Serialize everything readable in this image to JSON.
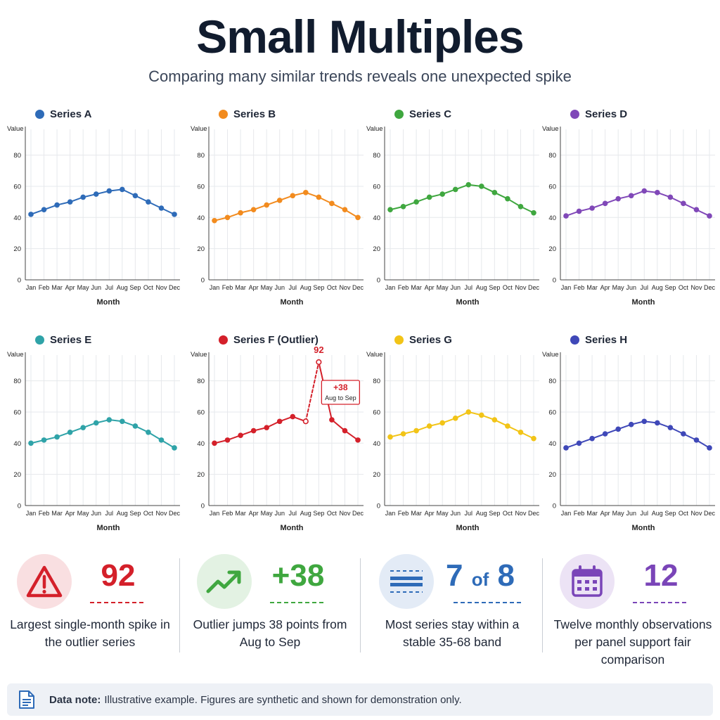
{
  "header": {
    "title": "Small Multiples",
    "subtitle": "Comparing many similar trends reveals one unexpected spike"
  },
  "chart_data": [
    {
      "type": "line",
      "name": "Series A",
      "color": "#2e6bb8",
      "xlabel": "Month",
      "ylabel": "Value",
      "ylim": [
        0,
        92
      ],
      "yticks": [
        0,
        20,
        40,
        60,
        80
      ],
      "categories": [
        "Jan",
        "Feb",
        "Mar",
        "Apr",
        "May",
        "Jun",
        "Jul",
        "Aug",
        "Sep",
        "Oct",
        "Nov",
        "Dec"
      ],
      "values": [
        42,
        45,
        48,
        50,
        53,
        55,
        57,
        58,
        54,
        50,
        46,
        42
      ]
    },
    {
      "type": "line",
      "name": "Series B",
      "color": "#f28b1e",
      "xlabel": "Month",
      "ylabel": "Value",
      "ylim": [
        0,
        92
      ],
      "yticks": [
        0,
        20,
        40,
        60,
        80
      ],
      "categories": [
        "Jan",
        "Feb",
        "Mar",
        "Apr",
        "May",
        "Jun",
        "Jul",
        "Aug",
        "Sep",
        "Oct",
        "Nov",
        "Dec"
      ],
      "values": [
        38,
        40,
        43,
        45,
        48,
        51,
        54,
        56,
        53,
        49,
        45,
        40
      ]
    },
    {
      "type": "line",
      "name": "Series C",
      "color": "#3fa73f",
      "xlabel": "Month",
      "ylabel": "Value",
      "ylim": [
        0,
        92
      ],
      "yticks": [
        0,
        20,
        40,
        60,
        80
      ],
      "categories": [
        "Jan",
        "Feb",
        "Mar",
        "Apr",
        "May",
        "Jun",
        "Jul",
        "Aug",
        "Sep",
        "Oct",
        "Nov",
        "Dec"
      ],
      "values": [
        45,
        47,
        50,
        53,
        55,
        58,
        61,
        60,
        56,
        52,
        47,
        43
      ]
    },
    {
      "type": "line",
      "name": "Series D",
      "color": "#8048b8",
      "xlabel": "Month",
      "ylabel": "Value",
      "ylim": [
        0,
        92
      ],
      "yticks": [
        0,
        20,
        40,
        60,
        80
      ],
      "categories": [
        "Jan",
        "Feb",
        "Mar",
        "Apr",
        "May",
        "Jun",
        "Jul",
        "Aug",
        "Sep",
        "Oct",
        "Nov",
        "Dec"
      ],
      "values": [
        41,
        44,
        46,
        49,
        52,
        54,
        57,
        56,
        53,
        49,
        45,
        41
      ]
    },
    {
      "type": "line",
      "name": "Series E",
      "color": "#2fa3a8",
      "xlabel": "Month",
      "ylabel": "Value",
      "ylim": [
        0,
        92
      ],
      "yticks": [
        0,
        20,
        40,
        60,
        80
      ],
      "categories": [
        "Jan",
        "Feb",
        "Mar",
        "Apr",
        "May",
        "Jun",
        "Jul",
        "Aug",
        "Sep",
        "Oct",
        "Nov",
        "Dec"
      ],
      "values": [
        40,
        42,
        44,
        47,
        50,
        53,
        55,
        54,
        51,
        47,
        42,
        37
      ]
    },
    {
      "type": "line",
      "name": "Series F (Outlier)",
      "color": "#d4202a",
      "xlabel": "Month",
      "ylabel": "Value",
      "ylim": [
        0,
        92
      ],
      "yticks": [
        0,
        20,
        40,
        60,
        80
      ],
      "categories": [
        "Jan",
        "Feb",
        "Mar",
        "Apr",
        "May",
        "Jun",
        "Jul",
        "Aug",
        "Sep",
        "Oct",
        "Nov",
        "Dec"
      ],
      "values": [
        40,
        42,
        45,
        48,
        50,
        54,
        57,
        54,
        92,
        55,
        48,
        42
      ],
      "annotations": {
        "peak_label": "92",
        "change_label": "+38",
        "change_period": "Aug to Sep"
      }
    },
    {
      "type": "line",
      "name": "Series G",
      "color": "#f2c417",
      "xlabel": "Month",
      "ylabel": "Value",
      "ylim": [
        0,
        92
      ],
      "yticks": [
        0,
        20,
        40,
        60,
        80
      ],
      "categories": [
        "Jan",
        "Feb",
        "Mar",
        "Apr",
        "May",
        "Jun",
        "Jul",
        "Aug",
        "Sep",
        "Oct",
        "Nov",
        "Dec"
      ],
      "values": [
        44,
        46,
        48,
        51,
        53,
        56,
        60,
        58,
        55,
        51,
        47,
        43
      ]
    },
    {
      "type": "line",
      "name": "Series H",
      "color": "#3f48b8",
      "xlabel": "Month",
      "ylabel": "Value",
      "ylim": [
        0,
        92
      ],
      "yticks": [
        0,
        20,
        40,
        60,
        80
      ],
      "categories": [
        "Jan",
        "Feb",
        "Mar",
        "Apr",
        "May",
        "Jun",
        "Jul",
        "Aug",
        "Sep",
        "Oct",
        "Nov",
        "Dec"
      ],
      "values": [
        37,
        40,
        43,
        46,
        49,
        52,
        54,
        53,
        50,
        46,
        42,
        37
      ]
    }
  ],
  "kpis": [
    {
      "icon": "warning-icon",
      "value": "92",
      "value_suffix": "",
      "color": "#d4202a",
      "bg": "#f9dfe1",
      "description": "Largest single-month spike in the outlier series"
    },
    {
      "icon": "trend-up-icon",
      "value": "+38",
      "value_suffix": "",
      "color": "#3fa73f",
      "bg": "#e3f2e3",
      "description": "Outlier jumps 38 points from Aug to Sep"
    },
    {
      "icon": "band-icon",
      "value": "7",
      "value_mid": "of",
      "value_suffix": "8",
      "color": "#2e6bb8",
      "bg": "#e3ebf6",
      "description": "Most series stay within a stable 35-68 band"
    },
    {
      "icon": "calendar-icon",
      "value": "12",
      "value_suffix": "",
      "color": "#7a45b8",
      "bg": "#ece3f5",
      "description": "Twelve monthly observations per panel support fair comparison"
    }
  ],
  "note": {
    "label": "Data note:",
    "text": "Illustrative example. Figures are synthetic and shown for demonstration only."
  }
}
